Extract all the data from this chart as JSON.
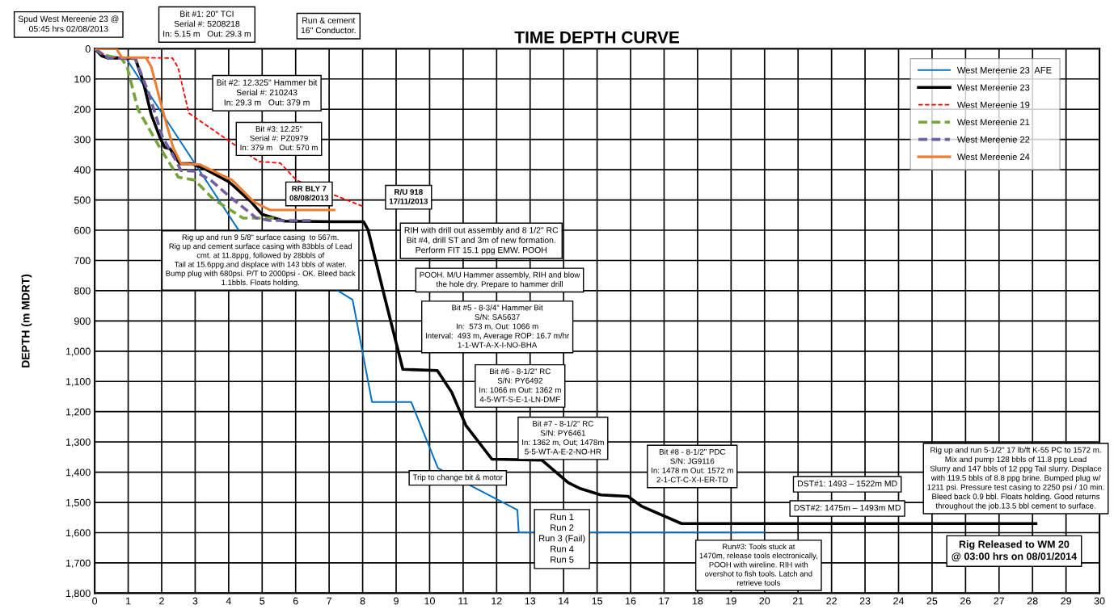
{
  "chart_data": {
    "type": "line",
    "title": "TIME DEPTH CURVE",
    "ylabel": "DEPTH (m MDRT)",
    "xlim": [
      0,
      30
    ],
    "xticks": [
      0,
      1,
      2,
      3,
      4,
      5,
      6,
      7,
      8,
      9,
      10,
      11,
      12,
      13,
      14,
      15,
      16,
      17,
      18,
      19,
      20,
      21,
      22,
      23,
      24,
      25,
      26,
      27,
      28,
      29,
      30
    ],
    "ylim": [
      1800,
      0
    ],
    "yticks": [
      0,
      100,
      200,
      300,
      400,
      500,
      600,
      700,
      800,
      900,
      {
        "value": 1000,
        "label": "1,000"
      },
      {
        "value": 1100,
        "label": "1,100"
      },
      {
        "value": 1200,
        "label": "1,200"
      },
      {
        "value": 1300,
        "label": "1,300"
      },
      {
        "value": 1400,
        "label": "1,400"
      },
      {
        "value": 1500,
        "label": "1,500"
      },
      {
        "value": 1600,
        "label": "1,600"
      },
      {
        "value": 1700,
        "label": "1,700"
      },
      {
        "value": 1800,
        "label": "1,800"
      }
    ],
    "grid": true,
    "legend": "top right",
    "marker": "none",
    "series": [
      {
        "name": "West Mereenie 23  AFE",
        "color": "#0070c0",
        "line_style": "solid",
        "x": [
          0,
          0.25,
          0.72,
          0.96,
          4.28,
          7.7,
          8.28,
          9.45,
          10.25,
          11.37,
          12.62,
          12.66,
          20.0
        ],
        "values": [
          0,
          24,
          28,
          36,
          597,
          830,
          1168,
          1168,
          1387,
          1453,
          1525,
          1599,
          1599
        ]
      },
      {
        "name": "West Mereenie 23",
        "color": "#000000",
        "line_style": "solid",
        "x": [
          0,
          0.21,
          0.41,
          1.21,
          1.45,
          1.69,
          1.97,
          2.09,
          2.25,
          2.54,
          2.9,
          3.3,
          4.02,
          4.67,
          4.99,
          5.67,
          7.16,
          8.03,
          8.16,
          8.67,
          9.2,
          10.23,
          10.66,
          11.08,
          11.86,
          13.35,
          14.14,
          14.47,
          15.11,
          15.92,
          16.32,
          17.52,
          28.1
        ],
        "values": [
          0,
          24,
          31,
          31,
          110,
          218,
          299,
          326,
          331,
          380,
          380,
          398,
          441,
          506,
          547,
          570,
          572,
          572,
          598,
          827,
          1060,
          1064,
          1136,
          1245,
          1357,
          1360,
          1435,
          1453,
          1475,
          1480,
          1512,
          1570,
          1570
        ]
      },
      {
        "name": "West Mereenie 19",
        "color": "#ff0000",
        "line_style": "dashed",
        "x": [
          0,
          0.4,
          2.32,
          2.49,
          2.81,
          4.9,
          5.54,
          6.03,
          8.03
        ],
        "values": [
          0,
          28,
          31,
          62,
          213,
          373,
          378,
          435,
          522
        ]
      },
      {
        "name": "West Mereenie 21",
        "color": "#77a33c",
        "line_style": "dashed",
        "x": [
          0,
          0.25,
          0.81,
          0.97,
          1.29,
          1.94,
          2.5,
          2.98,
          3.54,
          4.43,
          5.5
        ],
        "values": [
          0,
          20,
          33,
          60,
          200,
          326,
          425,
          434,
          497,
          560,
          560
        ]
      },
      {
        "name": "West Mereenie 22",
        "color": "#7060a0",
        "line_style": "dashed",
        "x": [
          0,
          0.41,
          1.21,
          1.61,
          2.02,
          2.34,
          2.58,
          2.98,
          3.46,
          4.02,
          4.83,
          5.23,
          6.59
        ],
        "values": [
          0,
          31,
          33,
          146,
          290,
          353,
          403,
          405,
          434,
          488,
          560,
          568,
          568
        ]
      },
      {
        "name": "West Mereenie 24",
        "color": "#ed7d31",
        "line_style": "solid",
        "x": [
          0,
          0.65,
          0.81,
          1.53,
          1.69,
          2.02,
          2.34,
          2.58,
          3.14,
          4.1,
          4.75,
          5.23,
          7.15
        ],
        "values": [
          0,
          0,
          29,
          29,
          60,
          200,
          326,
          380,
          383,
          434,
          506,
          533,
          533
        ]
      }
    ],
    "annotations": [
      "Spud West Mereenie 23 @\n05:45 hrs 02/08/2013",
      "Bit #1: 20\" TCI\nSerial #: 5208218\nIn: 5.15 m   Out: 29.3 m",
      "Run & cement\n16\" Conductor.",
      "Bit #2: 12.325\" Hammer bit\nSerial #: 210243\nIn: 29.3 m   Out: 379 m",
      "Bit #3: 12.25\"\nSerial #: PZ0979\nIn: 379 m   Out: 570 m",
      "RR BLY 7\n08/08/2013",
      "R/U 918\n17/11/2013",
      "Rig up and run 9 5/8\" surface casing  to 567m.\nRig up and cement surface casing with 83bbls of Lead\ncmt. at 11.8ppg, followed by 28bbls of\nTail at 15.6ppg.and displace with 143 bbls of water.\nBump plug with 680psi. P/T to 2000psi - OK. Bleed back\n1.1bbls. Floats holding.",
      "RIH with drill out assembly and 8 1/2\" RC\nBit #4, drill ST and 3m of new formation.\nPerform FIT 15.1 ppg EMW. POOH",
      "POOH. M/U Hammer assembly, RIH and blow\nthe hole dry. Prepare to hammer drill",
      "Bit #5 - 8-3/4\" Hammer Bit\nS/N: SA5637\nIn:  573 m, Out: 1066 m\nInterval:  493 m, Average ROP: 16.7 m/hr\n1-1-WT-A-X-I-NO-BHA",
      "Bit #6 - 8-1/2\" RC\nS/N: PY6492\nIn: 1066 m Out: 1362 m\n4-5-WT-S-E-1-LN-DMF",
      "Bit #7 - 8-1/2\" RC\nS/N: PY6461\nIn: 1362 m, Out; 1478m\n5-5-WT-A-E-2-NO-HR",
      "Bit #8 - 8-1/2\" PDC\nS/N: JG9116\nIn: 1478 m Out: 1572 m\n2-1-CT-C-X-I-ER-TD",
      "Trip to change bit & motor",
      "Run 1\nRun 2\nRun 3 (Fail)\nRun 4\nRun 5",
      "Run#3: Tools stuck at\n1470m, release tools electronically,\nPOOH with wireline. RIH with\novershot to fish tools. Latch and\nretrieve tools",
      "DST#1: 1493 – 1522m MD",
      "DST#2: 1475m – 1493m MD",
      "Rig up and run 5-1/2\" 17 lb/ft K-55 PC to 1572 m.\nMix and pump 128 bbls of 11.8 ppg Lead\nSlurry and 147 bbls of 12 ppg Tail slurry. Displace\nwith 119.5 bbls of 8.8 ppg brine. Bumped plug w/\n1211 psi. Pressure test casing to 2250 psi / 10 min.\nBleed back 0.9 bbl. Floats holding. Good returns\nthroughout the job.13.5 bbl cement to surface.",
      "Rig Released to WM 20\n@ 03:00 hrs on 08/01/2014"
    ]
  }
}
